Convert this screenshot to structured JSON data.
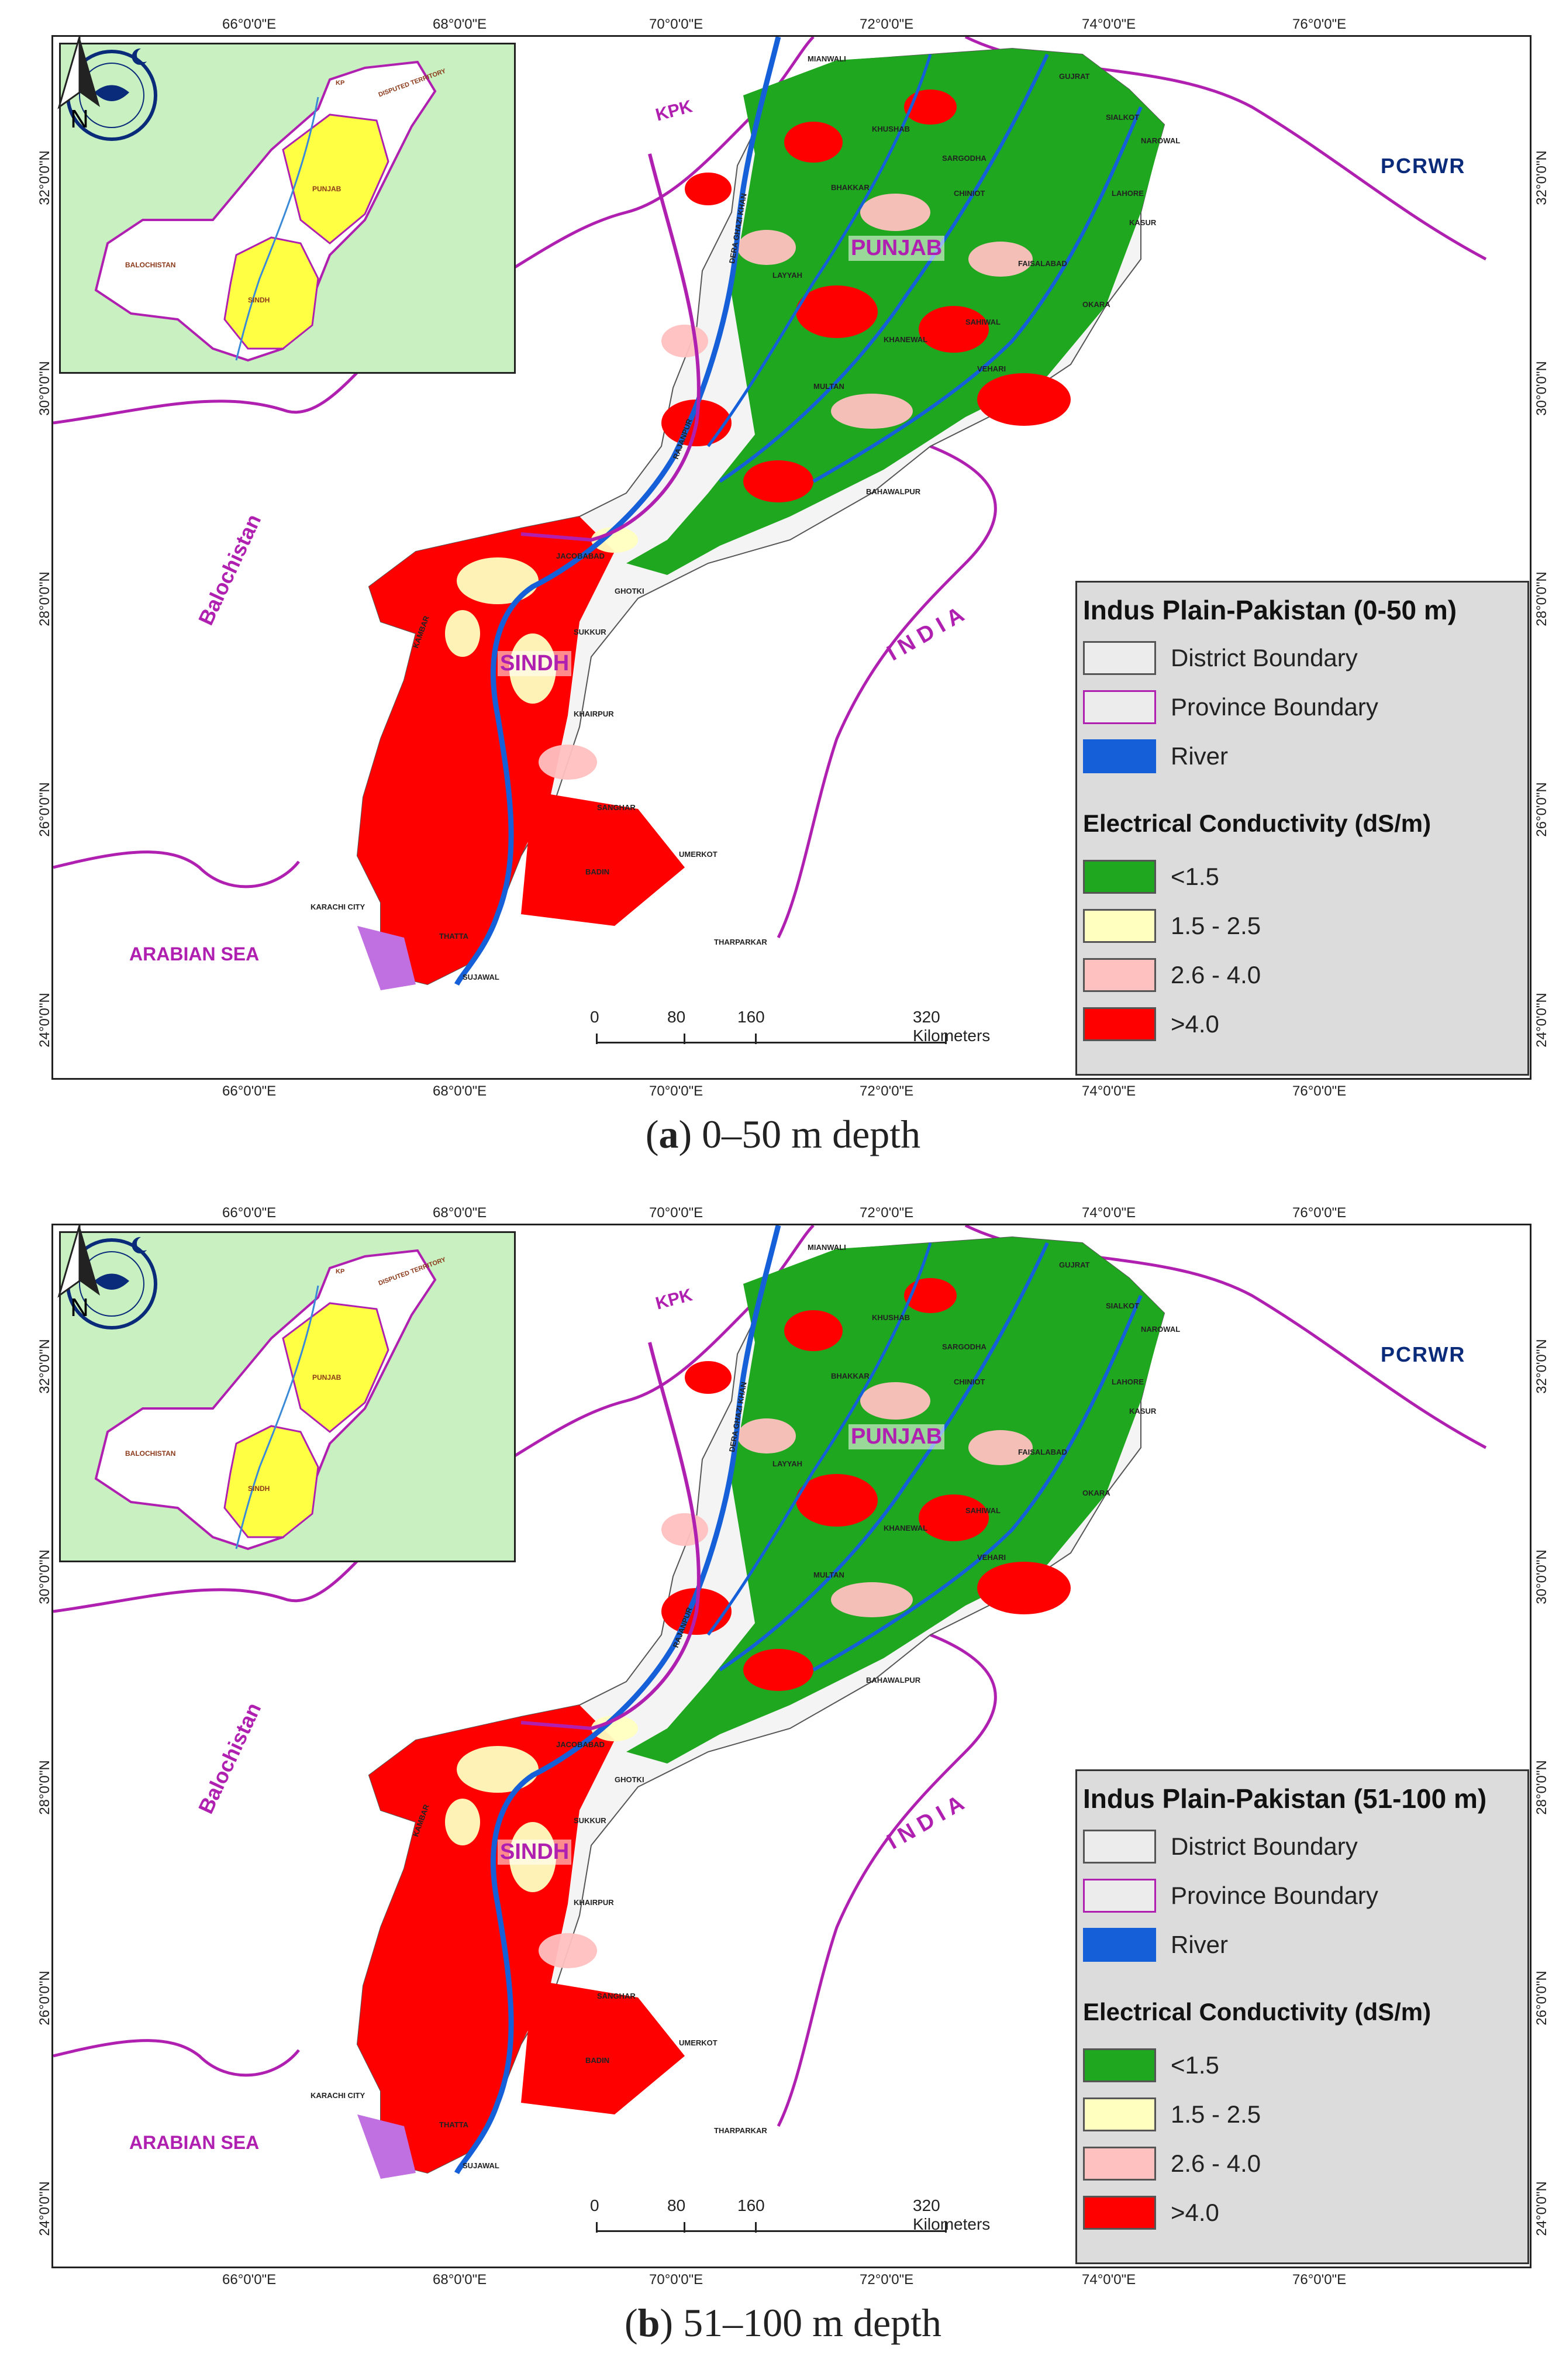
{
  "panels": [
    {
      "id": "a",
      "legend_title": "Indus Plain-Pakistan (0-50 m)",
      "caption_letter": "a",
      "caption_text": "0–50 m depth"
    },
    {
      "id": "b",
      "legend_title": "Indus Plain-Pakistan (51-100 m)",
      "caption_letter": "b",
      "caption_text": "51–100 m depth"
    }
  ],
  "longitudes": [
    "66°0'0\"E",
    "68°0'0\"E",
    "70°0'0\"E",
    "72°0'0\"E",
    "74°0'0\"E",
    "76°0'0\"E"
  ],
  "latitudes": [
    "32°0'0\"N",
    "30°0'0\"N",
    "28°0'0\"N",
    "26°0'0\"N",
    "24°0'0\"N"
  ],
  "legend": {
    "items": [
      {
        "label": "District Boundary",
        "color": "#ececec",
        "border": "#555555"
      },
      {
        "label": "Province Boundary",
        "color": "#ececec",
        "border": "#b020b0"
      },
      {
        "label": "River",
        "color": "#1560d8",
        "border": "#1560d8"
      }
    ],
    "ec_title": "Electrical Conductivity (dS/m)",
    "classes": [
      {
        "label": "<1.5",
        "color": "#1fa81f"
      },
      {
        "label": "1.5 - 2.5",
        "color": "#ffffc0"
      },
      {
        "label": "2.6 - 4.0",
        "color": "#ffc0c0"
      },
      {
        "label": ">4.0",
        "color": "#ff0000"
      }
    ]
  },
  "regions": {
    "kpk": "KPK",
    "balochistan": "Balochistan",
    "india": "I N D I A",
    "arabian_sea": "ARABIAN SEA",
    "punjab": "PUNJAB",
    "sindh": "SINDH"
  },
  "districts": [
    "MIANWALI",
    "KHUSHAB",
    "SARGODHA",
    "GUJRAT",
    "SIALKOT",
    "NAROWAL",
    "BHAKKAR",
    "CHINIOT",
    "LAYYAH",
    "DERA GHAZI KHAN",
    "KASUR",
    "OKARA",
    "SAHIWAL",
    "KHANEWAL",
    "VEHARI",
    "MULTAN",
    "RAJANPUR",
    "BAHAWALPUR",
    "GHOTKI",
    "SUKKUR",
    "KAMBAR",
    "KHAIRPUR",
    "SANGHAR",
    "BADIN",
    "UMERKOT",
    "THARPARKAR",
    "KARACHI CITY",
    "THATTA",
    "SUJAWAL",
    "JACOBABAD",
    "FAISALABAD",
    "LAHORE"
  ],
  "inset": {
    "labels": [
      "BALOCHISTAN",
      "PUNJAB",
      "SINDH",
      "DISPUTED TERRITORY",
      "KP"
    ]
  },
  "scale": {
    "ticks": [
      "0",
      "80",
      "160"
    ],
    "end": "320 Kilometers"
  },
  "north": "N",
  "logo": "PCRWR"
}
